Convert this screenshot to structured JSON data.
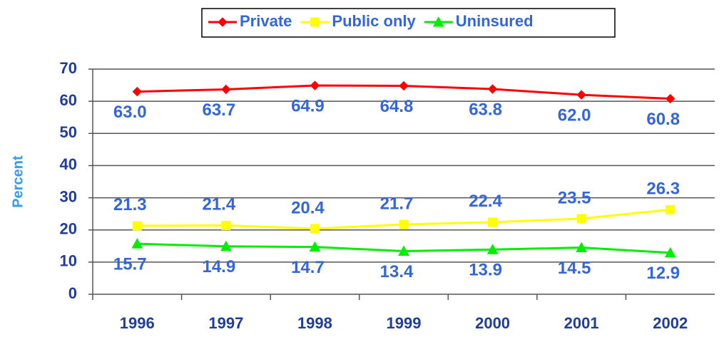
{
  "chart_data": {
    "type": "line",
    "y_label": "Percent",
    "categories": [
      "1996",
      "1997",
      "1998",
      "1999",
      "2000",
      "2001",
      "2002"
    ],
    "series": [
      {
        "name": "Private",
        "color": "#ff0000",
        "marker": "diamond",
        "label_side": "below",
        "values": [
          63.0,
          63.7,
          64.9,
          64.8,
          63.8,
          62.0,
          60.8
        ],
        "value_labels": [
          "63.0",
          "63.7",
          "64.9",
          "64.8",
          "63.8",
          "62.0",
          "60.8"
        ]
      },
      {
        "name": "Public only",
        "color": "#ffff00",
        "marker": "square",
        "label_side": "above",
        "values": [
          21.3,
          21.4,
          20.4,
          21.7,
          22.4,
          23.5,
          26.3
        ],
        "value_labels": [
          "21.3",
          "21.4",
          "20.4",
          "21.7",
          "22.4",
          "23.5",
          "26.3"
        ]
      },
      {
        "name": "Uninsured",
        "color": "#00ee00",
        "marker": "triangle",
        "label_side": "below",
        "values": [
          15.7,
          14.9,
          14.7,
          13.4,
          13.9,
          14.5,
          12.9
        ],
        "value_labels": [
          "15.7",
          "14.9",
          "14.7",
          "13.4",
          "13.9",
          "14.5",
          "12.9"
        ]
      }
    ],
    "ylim": [
      0,
      70
    ],
    "yticks": [
      0,
      10,
      20,
      30,
      40,
      50,
      60,
      70
    ],
    "grid": true
  }
}
